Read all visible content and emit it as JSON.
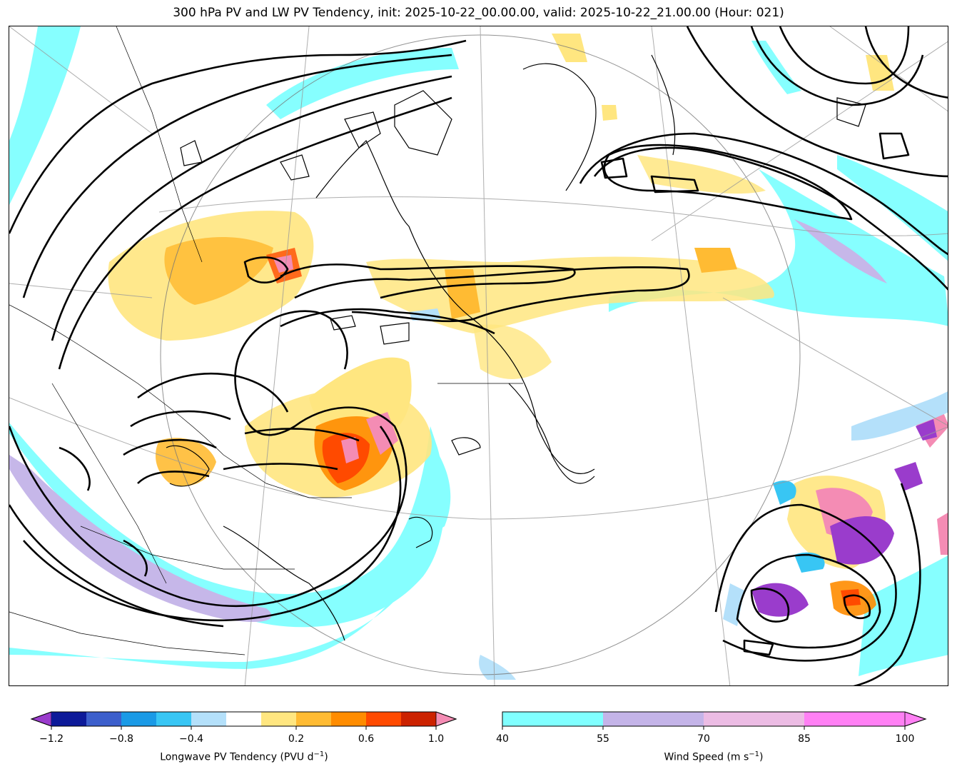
{
  "title": "300 hPa PV and LW PV Tendency, init: 2025-10-22_00.00.00, valid: 2025-10-22_21.00.00 (Hour: 021)",
  "colorbar_left": {
    "label_main": "Longwave PV Tendency (PVU d",
    "label_sup": "−1",
    "label_close": ")",
    "ticks": [
      "−1.2",
      "−0.8",
      "−0.4",
      "0.2",
      "0.6",
      "1.0"
    ],
    "colors": [
      "#0d1a99",
      "#3c5fcc",
      "#1a9ae6",
      "#38c6f4",
      "#b4e0fa",
      "#ffffff",
      "#ffe680",
      "#ffbb33",
      "#ff8c00",
      "#ff4a00",
      "#cc2200"
    ],
    "under_color": "#9a3ccc",
    "over_color": "#f48cb4"
  },
  "colorbar_right": {
    "label_main": "Wind Speed (m s",
    "label_sup": "−1",
    "label_close": ")",
    "ticks": [
      "40",
      "55",
      "70",
      "85",
      "100"
    ],
    "colors": [
      "#80ffff",
      "#c4b4e8",
      "#ecbce4",
      "#ff80f4"
    ],
    "over_color": "#ff80f4"
  }
}
